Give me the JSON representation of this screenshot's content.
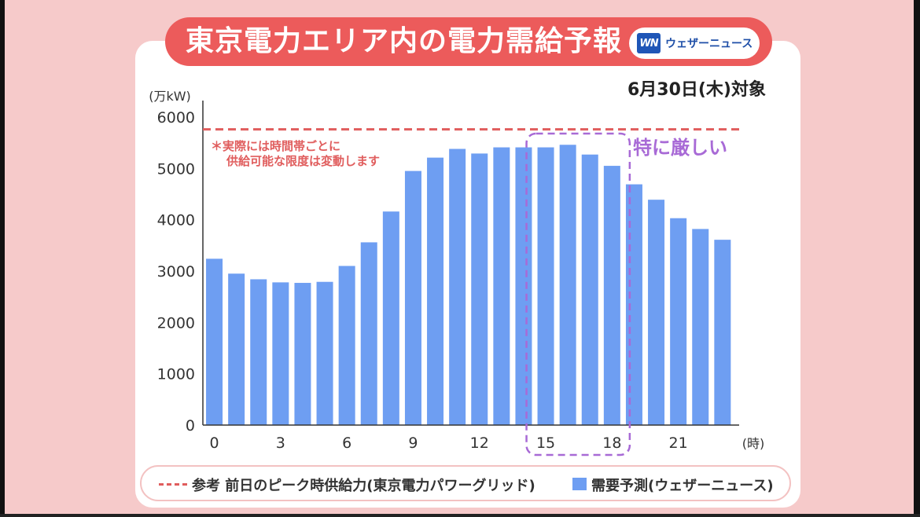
{
  "header": {
    "title": "東京電力エリア内の電力需給予報",
    "logo_mark": "WN",
    "logo_text": "ウェザーニュース",
    "date_label": "6月30日(木)対象"
  },
  "colors": {
    "background": "#f6caca",
    "title_bar": "#ec5b5b",
    "bar": "#6e9ef2",
    "reference_line": "#e05d5d",
    "highlight": "#a86ad6"
  },
  "chart_data": {
    "type": "bar",
    "y_unit": "(万kW)",
    "x_unit": "(時)",
    "ylim": [
      0,
      6000
    ],
    "yticks": [
      0,
      1000,
      2000,
      3000,
      4000,
      5000,
      6000
    ],
    "x": [
      0,
      1,
      2,
      3,
      4,
      5,
      6,
      7,
      8,
      9,
      10,
      11,
      12,
      13,
      14,
      15,
      16,
      17,
      18,
      19,
      20,
      21,
      22,
      23
    ],
    "xtick_labels": [
      "0",
      "3",
      "6",
      "9",
      "12",
      "15",
      "18",
      "21"
    ],
    "xtick_positions": [
      0,
      3,
      6,
      9,
      12,
      15,
      18,
      21
    ],
    "series": [
      {
        "name": "需要予測(ウェザーニュース)",
        "values": [
          3240,
          2950,
          2840,
          2780,
          2770,
          2790,
          3100,
          3560,
          4160,
          4950,
          5210,
          5380,
          5290,
          5410,
          5410,
          5410,
          5460,
          5270,
          5050,
          4690,
          4390,
          4030,
          3820,
          3610
        ]
      }
    ],
    "reference_line": {
      "name": "参考 前日のピーク時供給力(東京電力パワーグリッド)",
      "value": 5760
    },
    "annotation_note": "＊実際には時間帯ごとに\n供給可能な限度は変動します",
    "highlight": {
      "label": "特に厳しい",
      "from_hour": 15,
      "to_hour": 18
    },
    "grid": false,
    "legend_position": "bottom"
  },
  "legend": {
    "reference_label": "参考 前日のピーク時供給力(東京電力パワーグリッド)",
    "series_label": "需要予測(ウェザーニュース)"
  }
}
